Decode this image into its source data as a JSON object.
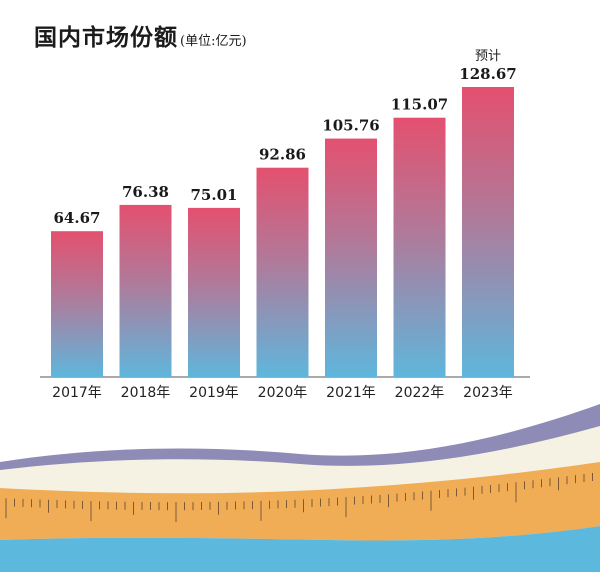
{
  "title": {
    "main": "国内市场份额",
    "unit": "(单位:亿元)"
  },
  "chart_data": {
    "type": "bar",
    "categories": [
      "2017年",
      "2018年",
      "2019年",
      "2020年",
      "2021年",
      "2022年",
      "2023年"
    ],
    "values": [
      64.67,
      76.38,
      75.01,
      92.86,
      105.76,
      115.07,
      128.67
    ],
    "value_labels": [
      "64.67",
      "76.38",
      "75.01",
      "92.86",
      "105.76",
      "115.07",
      "128.67"
    ],
    "annotations": [
      {
        "category": "2023年",
        "text": "预计"
      }
    ],
    "ylim": [
      0,
      128.67
    ],
    "grid": false,
    "legend": "none"
  },
  "colors": {
    "bar_top": "#e4506f",
    "bar_bottom": "#5fb6dc",
    "wave_purple": "#8e8bb6",
    "wave_cream": "#f6f2e3",
    "ruler": "#f0ad55",
    "sea": "#5db8de",
    "axis": "#555555"
  }
}
